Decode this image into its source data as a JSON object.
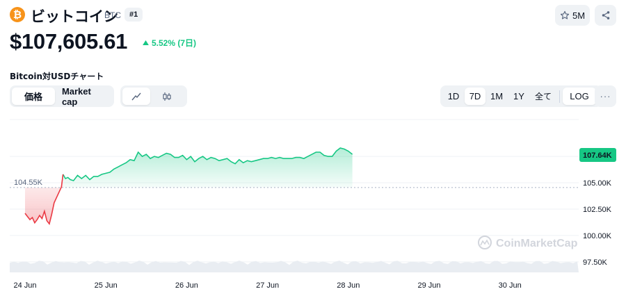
{
  "header": {
    "coin_logo_symbol": "₿",
    "coin_name": "ビットコイン",
    "symbol": "BTC",
    "rank": "#1",
    "watchlist_count": "5M",
    "price": "$107,605.61",
    "change": "5.52% (7日)",
    "change_direction": "up"
  },
  "chart_section": {
    "title": "Bitcoin対USDチャート",
    "type_tabs": [
      {
        "label": "価格",
        "active": true
      },
      {
        "label": "Market cap",
        "active": false
      }
    ],
    "style_tabs": [
      {
        "icon": "line-chart-icon",
        "active": true
      },
      {
        "icon": "candlestick-icon",
        "active": false
      }
    ],
    "range_tabs": [
      {
        "label": "1D",
        "active": false
      },
      {
        "label": "7D",
        "active": true
      },
      {
        "label": "1M",
        "active": false
      },
      {
        "label": "1Y",
        "active": false
      },
      {
        "label": "全て",
        "active": false
      },
      {
        "label": "LOG",
        "active": false
      }
    ],
    "more_label": "···"
  },
  "colors": {
    "up": "#16c784",
    "down": "#ea3943",
    "brand": "#f7931a",
    "pill_bg": "#eff2f5"
  },
  "chart_data": {
    "type": "area",
    "title": "",
    "xlabel": "",
    "ylabel": "",
    "x_ticks": [
      "24 Jun",
      "25 Jun",
      "26 Jun",
      "27 Jun",
      "28 Jun",
      "29 Jun",
      "30 Jun"
    ],
    "y_ticks": [
      "97.50K",
      "100.00K",
      "102.50K",
      "105.00K"
    ],
    "ylim": [
      96500,
      111000
    ],
    "baseline_label": "104.55K",
    "baseline_value": 104550,
    "current_label": "107.64K",
    "current_value": 107640,
    "watermark": "CoinMarketCap",
    "series": [
      {
        "values": [
          [
            0,
            102100
          ],
          [
            0.03,
            101800
          ],
          [
            0.06,
            101500
          ],
          [
            0.09,
            101700
          ],
          [
            0.12,
            101200
          ],
          [
            0.15,
            101500
          ],
          [
            0.18,
            101900
          ],
          [
            0.21,
            101600
          ],
          [
            0.24,
            102300
          ],
          [
            0.27,
            101400
          ],
          [
            0.3,
            101100
          ],
          [
            0.33,
            102000
          ],
          [
            0.36,
            103100
          ],
          [
            0.39,
            103600
          ],
          [
            0.42,
            104100
          ],
          [
            0.45,
            104600
          ],
          [
            0.47,
            105800
          ],
          [
            0.5,
            105400
          ],
          [
            0.53,
            105500
          ],
          [
            0.56,
            105300
          ],
          [
            0.6,
            105200
          ],
          [
            0.65,
            105700
          ],
          [
            0.7,
            105400
          ],
          [
            0.75,
            105700
          ],
          [
            0.8,
            105300
          ],
          [
            0.85,
            105600
          ],
          [
            0.9,
            105600
          ],
          [
            0.95,
            105800
          ],
          [
            1.0,
            105900
          ],
          [
            1.05,
            106000
          ],
          [
            1.1,
            106300
          ],
          [
            1.15,
            106500
          ],
          [
            1.2,
            106700
          ],
          [
            1.25,
            106900
          ],
          [
            1.3,
            107200
          ],
          [
            1.35,
            107100
          ],
          [
            1.4,
            107900
          ],
          [
            1.45,
            107500
          ],
          [
            1.5,
            107700
          ],
          [
            1.55,
            107300
          ],
          [
            1.6,
            107500
          ],
          [
            1.65,
            107400
          ],
          [
            1.7,
            107600
          ],
          [
            1.75,
            107800
          ],
          [
            1.8,
            107700
          ],
          [
            1.85,
            107400
          ],
          [
            1.9,
            107400
          ],
          [
            1.95,
            107600
          ],
          [
            2.0,
            107200
          ],
          [
            2.05,
            107500
          ],
          [
            2.1,
            107000
          ],
          [
            2.15,
            107300
          ],
          [
            2.2,
            107500
          ],
          [
            2.25,
            107200
          ],
          [
            2.3,
            107400
          ],
          [
            2.35,
            107300
          ],
          [
            2.4,
            107100
          ],
          [
            2.45,
            107200
          ],
          [
            2.5,
            107300
          ],
          [
            2.55,
            107000
          ],
          [
            2.6,
            106800
          ],
          [
            2.65,
            107200
          ],
          [
            2.7,
            106900
          ],
          [
            2.75,
            107100
          ],
          [
            2.8,
            107000
          ],
          [
            2.85,
            107100
          ],
          [
            2.9,
            107200
          ],
          [
            2.95,
            107300
          ],
          [
            3.0,
            107300
          ],
          [
            3.05,
            107400
          ],
          [
            3.1,
            107300
          ],
          [
            3.15,
            107400
          ],
          [
            3.2,
            107300
          ],
          [
            3.25,
            107300
          ],
          [
            3.3,
            107300
          ],
          [
            3.35,
            107400
          ],
          [
            3.4,
            107400
          ],
          [
            3.45,
            107300
          ],
          [
            3.5,
            107500
          ],
          [
            3.55,
            107700
          ],
          [
            3.6,
            107900
          ],
          [
            3.65,
            107900
          ],
          [
            3.7,
            107600
          ],
          [
            3.75,
            107500
          ],
          [
            3.8,
            107500
          ],
          [
            3.85,
            108000
          ],
          [
            3.9,
            108300
          ],
          [
            3.95,
            108200
          ],
          [
            4.0,
            108000
          ],
          [
            4.05,
            107700
          ]
        ]
      }
    ],
    "volume": {
      "description": "light grey volume band at bottom"
    }
  }
}
